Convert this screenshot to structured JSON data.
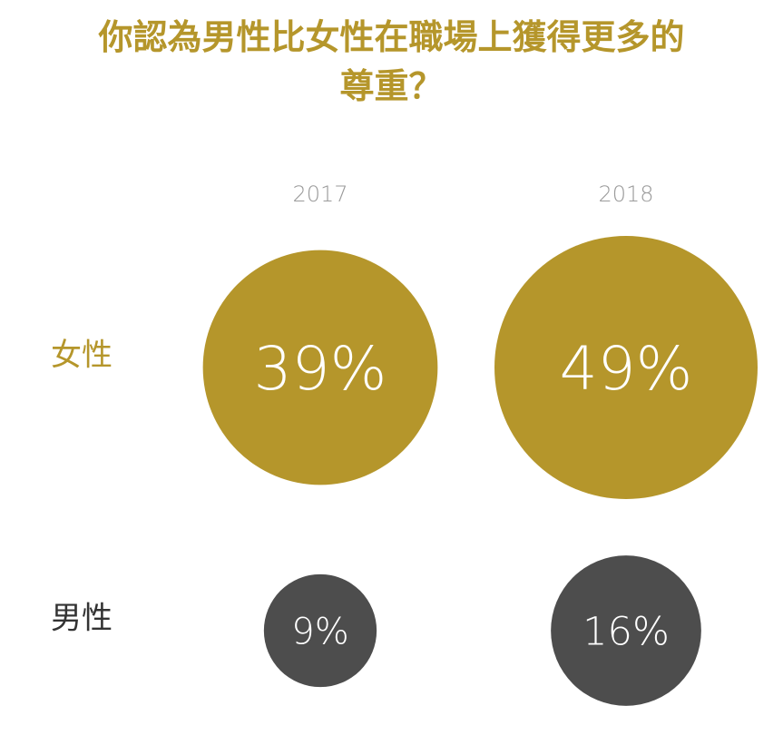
{
  "title_lines": [
    "你認為男性比女性在職場上獲得更多的",
    "尊重？"
  ],
  "colors": {
    "female": "#b5962b",
    "male": "#4d4d4d",
    "year_label": "#9a9a9a",
    "value_text": "#ffffff"
  },
  "chart_data": {
    "type": "bubble",
    "title": "你認為男性比女性在職場上獲得更多的尊重？",
    "categories": [
      "2017",
      "2018"
    ],
    "series": [
      {
        "name": "女性",
        "values": [
          39,
          49
        ],
        "labels": [
          "39%",
          "49%"
        ]
      },
      {
        "name": "男性",
        "values": [
          9,
          16
        ],
        "labels": [
          "9%",
          "16%"
        ]
      }
    ],
    "unit": "%"
  }
}
